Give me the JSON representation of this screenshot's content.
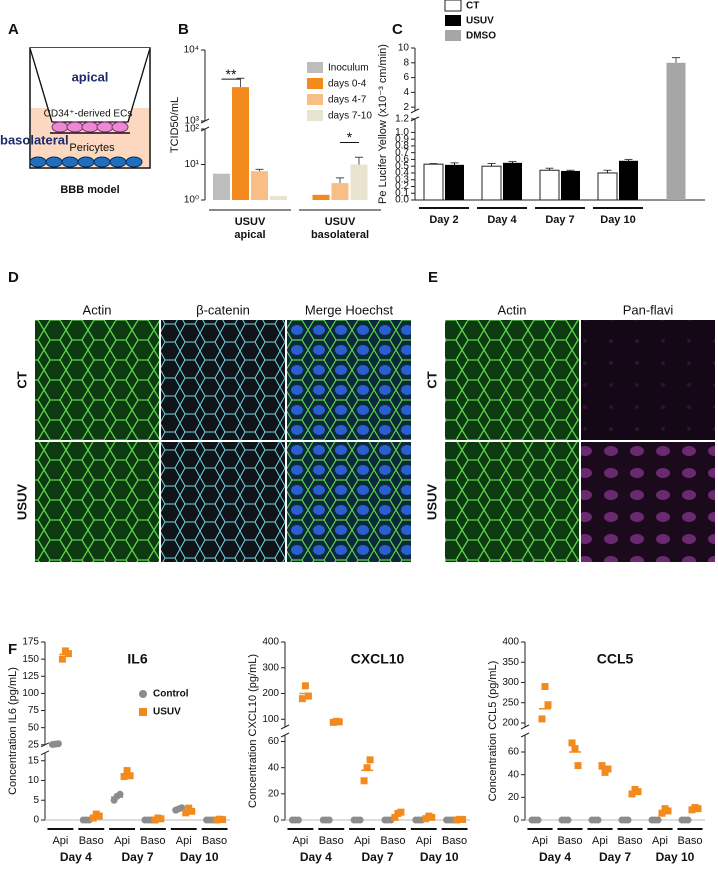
{
  "panel_letters": [
    "A",
    "B",
    "C",
    "D",
    "E",
    "F"
  ],
  "diagram": {
    "labels": [
      "apical",
      "CD34⁺-derived ECs",
      "basolateral",
      "Pericytes",
      "BBB model"
    ]
  },
  "images": {
    "D": {
      "columns": [
        "Actin",
        "β-catenin",
        "Merge Hoechst"
      ],
      "rows": [
        "CT",
        "USUV"
      ]
    },
    "E": {
      "columns": [
        "Actin",
        "Pan-flavi"
      ],
      "rows": [
        "CT",
        "USUV"
      ]
    }
  },
  "chart_data": [
    {
      "type": "bar",
      "ylabel": "TCID50/mL",
      "log_scale": true,
      "ylim": [
        1,
        10000
      ],
      "ybreak": [
        100,
        1000
      ],
      "yticks": [
        {
          "value": 1,
          "label": "10⁰"
        },
        {
          "value": 10,
          "label": "10¹"
        },
        {
          "value": 100,
          "label": "10²"
        },
        {
          "value": 1000,
          "label": "10³"
        },
        {
          "value": 10000,
          "label": "10⁴"
        }
      ],
      "categories": [
        "USUV",
        "USUV"
      ],
      "category_sublabels": [
        "apical",
        "basolateral"
      ],
      "legend": "top-right",
      "series": [
        {
          "name": "Inoculum",
          "color": "#bdbdbd",
          "values": [
            5.5,
            null
          ],
          "errors": [
            null,
            null
          ]
        },
        {
          "name": "days 0-4",
          "color": "#f28a1d",
          "values": [
            3000,
            1.4
          ],
          "errors": [
            1000,
            null
          ]
        },
        {
          "name": "days 4-7",
          "color": "#f9be85",
          "values": [
            6.5,
            3
          ],
          "errors": [
            0.8,
            1.2
          ]
        },
        {
          "name": "days 7-10",
          "color": "#e8e4d0",
          "values": [
            1.3,
            10
          ],
          "errors": [
            null,
            6
          ]
        }
      ],
      "annotations": [
        "**",
        "*"
      ]
    },
    {
      "type": "bar",
      "ylabel": "Pe Lucifer Yellow (x10⁻³ cm/min)",
      "ylim": [
        0,
        10
      ],
      "ybreak": [
        1.2,
        1.5
      ],
      "yticks": [
        {
          "value": 0,
          "label": "0.0"
        },
        0.1,
        0.2,
        0.3,
        0.4,
        0.5,
        0.6,
        0.7,
        0.8,
        0.9,
        {
          "value": 1,
          "label": "1.0"
        },
        1.2,
        2,
        4,
        6,
        8,
        10
      ],
      "categories": [
        "Day 2",
        "Day 4",
        "Day 7",
        "Day 10",
        null
      ],
      "legend": "top-left",
      "series": [
        {
          "name": "CT",
          "color": "#ffffff",
          "values": [
            0.53,
            0.5,
            0.44,
            0.4,
            null
          ],
          "errors": [
            0.01,
            0.04,
            0.03,
            0.04,
            null
          ]
        },
        {
          "name": "USUV",
          "color": "#000000",
          "values": [
            0.52,
            0.55,
            0.43,
            0.58,
            null
          ],
          "errors": [
            0.03,
            0.02,
            0.01,
            0.02,
            null
          ]
        },
        {
          "name": "DMSO",
          "color": "#a6a6a6",
          "values": [
            null,
            null,
            null,
            null,
            8
          ],
          "errors": [
            null,
            null,
            null,
            null,
            0.7
          ]
        }
      ]
    },
    {
      "type": "dot",
      "title": "IL6",
      "ylabel": "Concentration IL6 (pg/mL)",
      "ylim": [
        0,
        175
      ],
      "ybreak": [
        17,
        25
      ],
      "yticks": [
        0,
        5,
        10,
        15,
        25,
        50,
        75,
        100,
        125,
        150,
        175
      ],
      "categories": [
        "Api",
        "Baso",
        "Api",
        "Baso",
        "Api",
        "Baso"
      ],
      "groups": [
        "Day 4",
        "Day 7",
        "Day 10"
      ],
      "legend": "top-right",
      "series": [
        {
          "name": "Control",
          "color": "#8c8c8c",
          "marker": "circle",
          "values": [
            26,
            0,
            5.8,
            0,
            2.8,
            0
          ],
          "points": [
            [
              25.5,
              26,
              26.5
            ],
            [
              0,
              0,
              0
            ],
            [
              5,
              6,
              6.5
            ],
            [
              0,
              0,
              0
            ],
            [
              2.5,
              2.8,
              3.1
            ],
            [
              0,
              0,
              0
            ]
          ]
        },
        {
          "name": "USUV",
          "color": "#f28a1d",
          "marker": "square",
          "values": [
            157,
            1,
            11.6,
            0.3,
            2.3,
            0.1
          ],
          "points": [
            [
              150,
              162,
              158
            ],
            [
              0.5,
              1.5,
              1
            ],
            [
              11,
              12.5,
              11.2
            ],
            [
              0,
              0.5,
              0.3
            ],
            [
              1.8,
              3,
              2.2
            ],
            [
              0,
              0.2,
              0.1
            ]
          ]
        }
      ]
    },
    {
      "type": "dot",
      "title": "CXCL10",
      "ylabel": "Concentration CXCL10 (pg/mL)",
      "ylim": [
        0,
        400
      ],
      "ybreak": [
        65,
        70
      ],
      "yticks": [
        0,
        20,
        40,
        60,
        100,
        200,
        300,
        400
      ],
      "categories": [
        "Api",
        "Baso",
        "Api",
        "Baso",
        "Api",
        "Baso"
      ],
      "groups": [
        "Day 4",
        "Day 7",
        "Day 10"
      ],
      "series": [
        {
          "color": "#8c8c8c",
          "marker": "circle",
          "values": [
            0,
            0,
            0,
            0,
            0,
            0
          ],
          "points": [
            [
              0,
              0,
              0
            ],
            [
              0,
              0,
              0
            ],
            [
              0,
              0,
              0
            ],
            [
              0,
              0,
              0
            ],
            [
              0,
              0,
              0
            ],
            [
              0,
              0,
              0
            ]
          ]
        },
        {
          "color": "#f28a1d",
          "marker": "square",
          "values": [
            200,
            90,
            38,
            4,
            2,
            0.3
          ],
          "points": [
            [
              180,
              230,
              190
            ],
            [
              88,
              92,
              90
            ],
            [
              30,
              40,
              46
            ],
            [
              2,
              5,
              6
            ],
            [
              1,
              3,
              2
            ],
            [
              0,
              0.5,
              0.4
            ]
          ]
        }
      ]
    },
    {
      "type": "dot",
      "title": "CCL5",
      "ylabel": "Concentration CCL5 (pg/mL)",
      "ylim": [
        0,
        400
      ],
      "ybreak": [
        75,
        190
      ],
      "yticks": [
        0,
        20,
        40,
        60,
        200,
        250,
        300,
        350,
        400
      ],
      "categories": [
        "Api",
        "Baso",
        "Api",
        "Baso",
        "Api",
        "Baso"
      ],
      "groups": [
        "Day 4",
        "Day 7",
        "Day 10"
      ],
      "series": [
        {
          "color": "#8c8c8c",
          "marker": "circle",
          "values": [
            0,
            0,
            0,
            0,
            0,
            0
          ],
          "points": [
            [
              0,
              0,
              0
            ],
            [
              0,
              0,
              0
            ],
            [
              0,
              0,
              0
            ],
            [
              0,
              0,
              0
            ],
            [
              0,
              0,
              0
            ],
            [
              0,
              0,
              0
            ]
          ]
        },
        {
          "color": "#f28a1d",
          "marker": "square",
          "values": [
            235,
            60,
            45,
            25,
            8,
            10
          ],
          "points": [
            [
              210,
              290,
              245
            ],
            [
              68,
              63,
              48
            ],
            [
              48,
              42,
              45
            ],
            [
              23,
              27,
              25
            ],
            [
              6,
              10,
              8
            ],
            [
              9,
              11,
              10
            ]
          ]
        }
      ]
    }
  ]
}
